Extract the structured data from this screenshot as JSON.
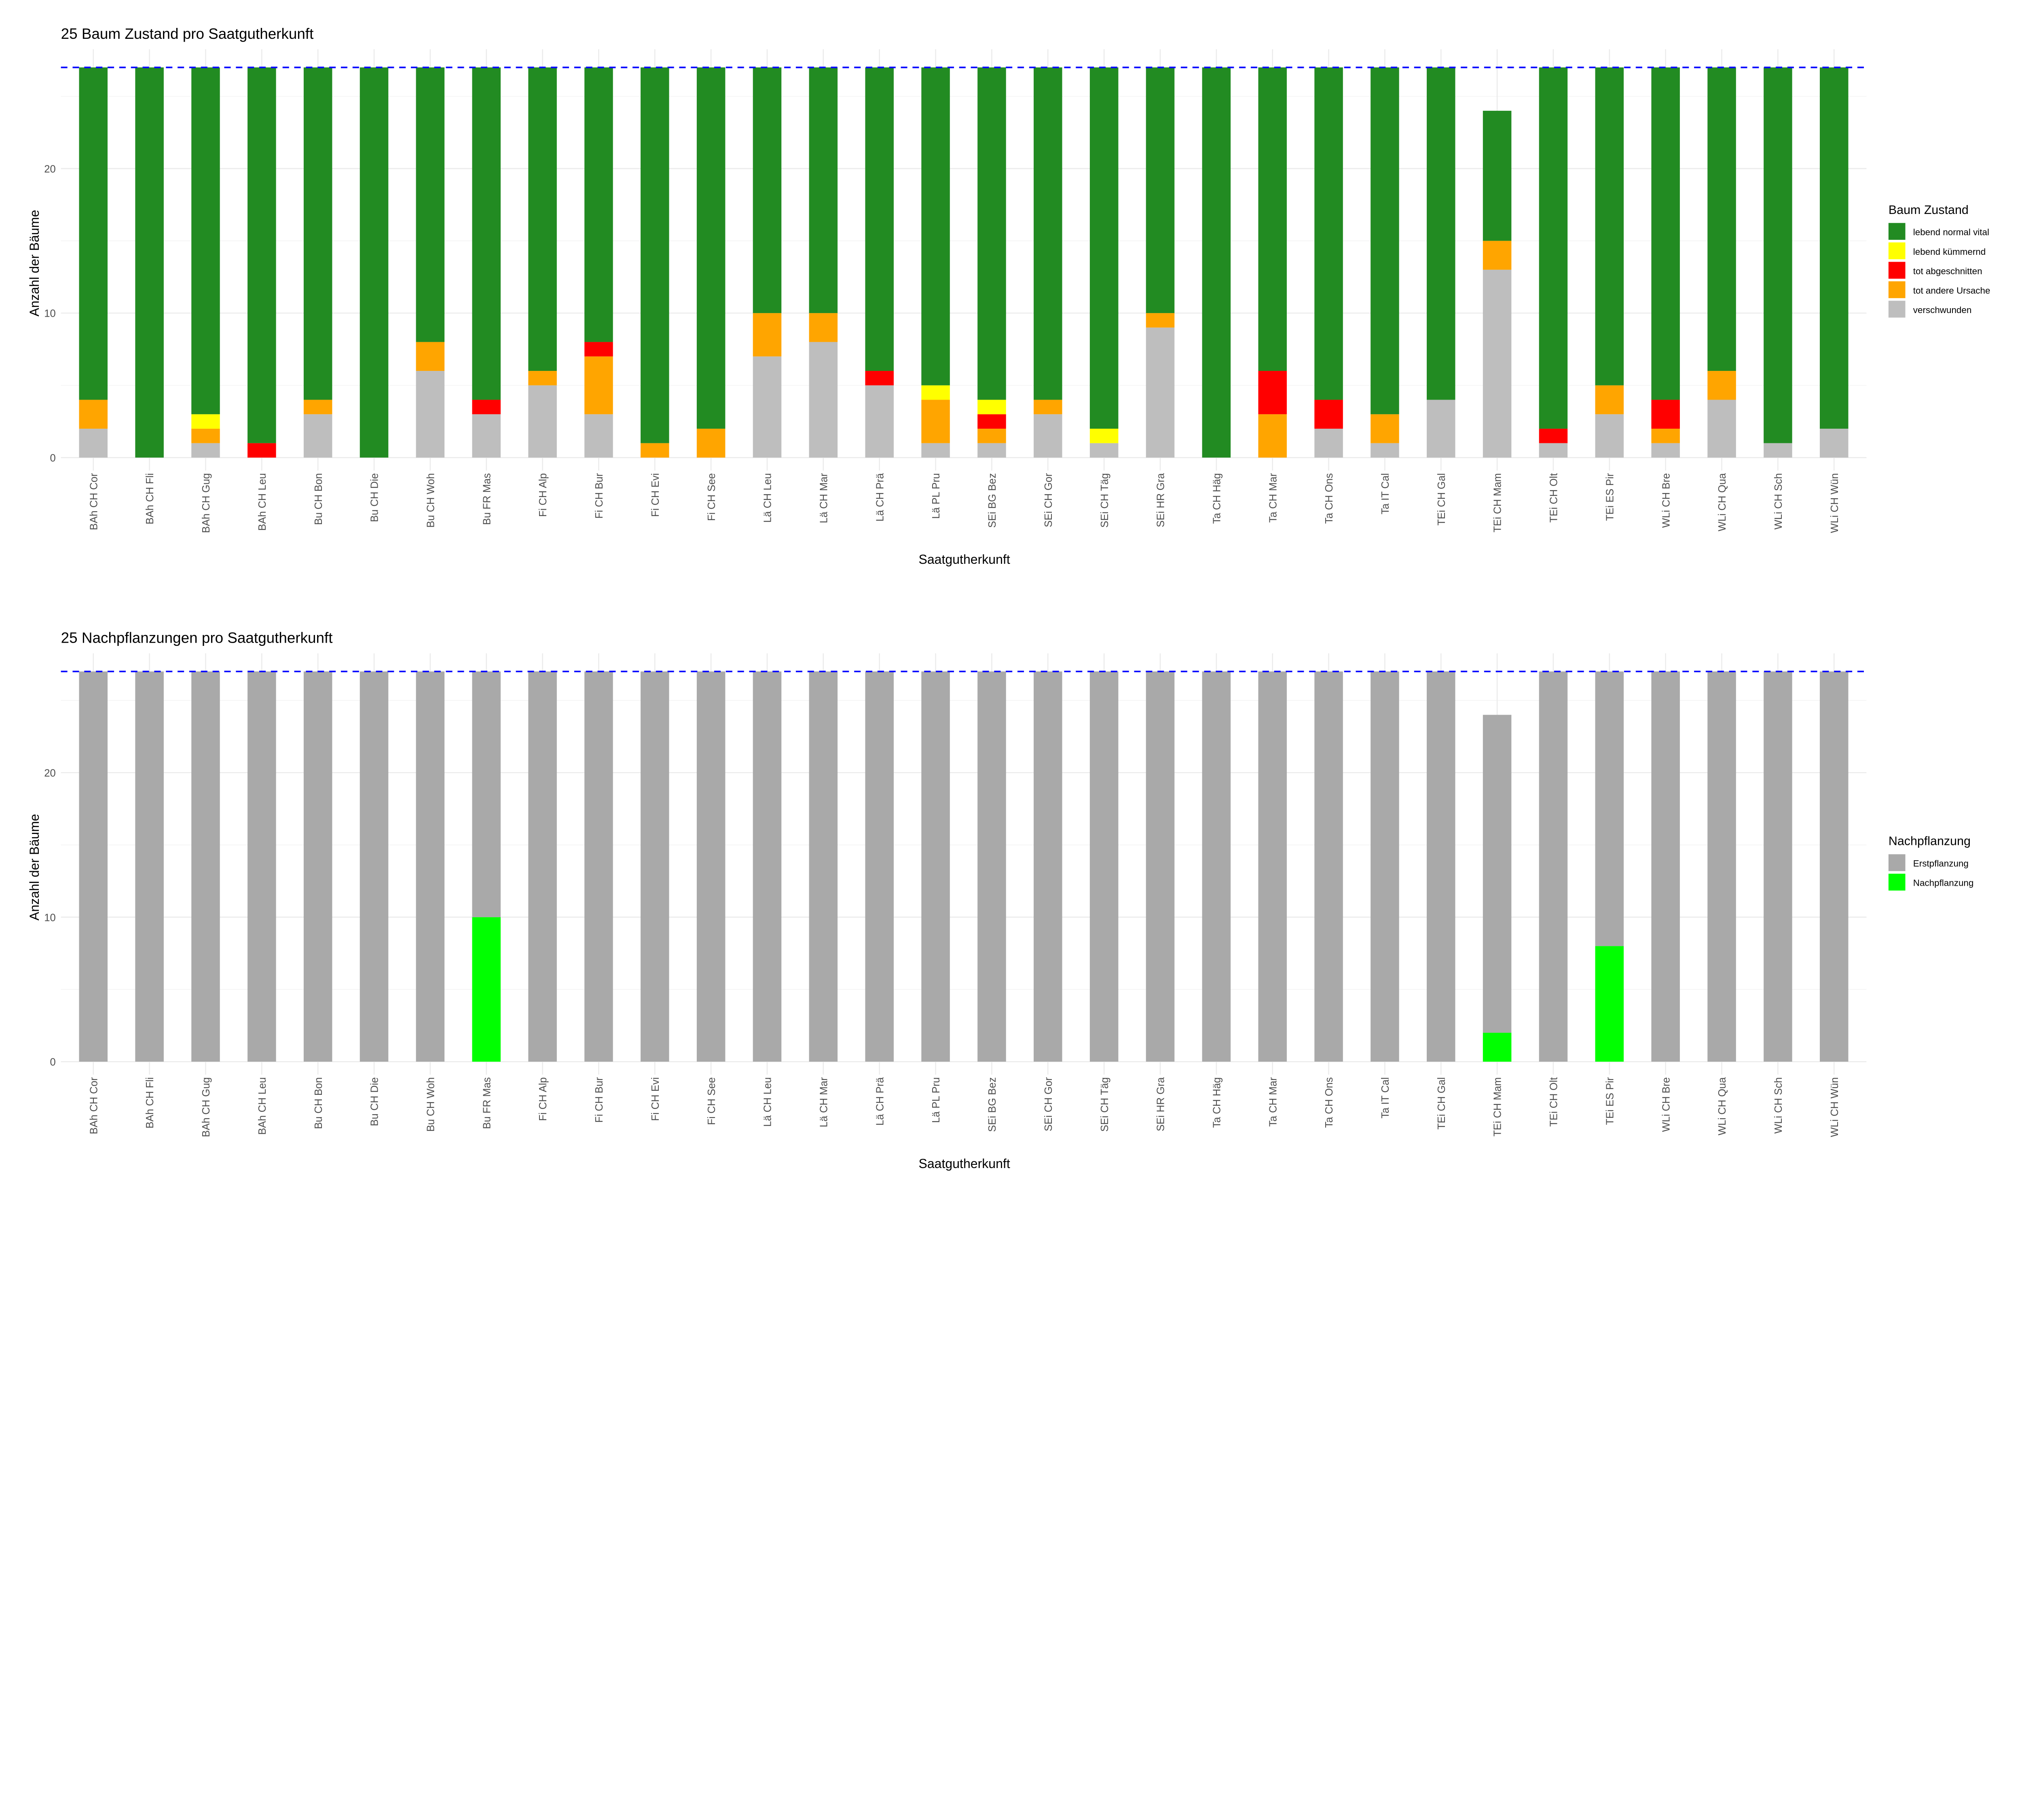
{
  "chart_data": [
    {
      "type": "bar",
      "stacked": true,
      "title": "25 Baum Zustand pro Saatgutherkunft",
      "xlabel": "Saatgutherkunft",
      "ylabel": "Anzahl der Bäume",
      "ylim": [
        0,
        28.3
      ],
      "yticks": [
        0,
        10,
        20
      ],
      "grid": true,
      "reference_line": {
        "y": 27,
        "color": "#0000ff",
        "style": "dashed"
      },
      "legend": {
        "title": "Baum Zustand",
        "position": "right"
      },
      "categories": [
        "BAh CH Cor",
        "BAh CH Fli",
        "BAh CH Gug",
        "BAh CH Leu",
        "Bu CH Bon",
        "Bu CH Die",
        "Bu CH Woh",
        "Bu FR Mas",
        "Fi CH Alp",
        "Fi CH Bur",
        "Fi CH Evi",
        "Fi CH See",
        "Lä CH Leu",
        "Lä CH Mar",
        "Lä CH Prä",
        "Lä PL Pru",
        "SEi BG Bez",
        "SEi CH Gor",
        "SEi CH Täg",
        "SEi HR Gra",
        "Ta CH Häg",
        "Ta CH Mar",
        "Ta CH Ons",
        "Ta IT Cal",
        "TEi CH Gal",
        "TEi CH Mam",
        "TEi CH Olt",
        "TEi ES Pir",
        "WLi CH Bre",
        "WLi CH Qua",
        "WLi CH Sch",
        "WLi CH Wün"
      ],
      "series": [
        {
          "name": "lebend normal vital",
          "color": "#228b22",
          "values": [
            23,
            27,
            24,
            26,
            23,
            27,
            19,
            23,
            21,
            19,
            26,
            25,
            17,
            17,
            21,
            22,
            23,
            23,
            25,
            17,
            27,
            21,
            23,
            24,
            23,
            9,
            25,
            22,
            23,
            21,
            26,
            25
          ]
        },
        {
          "name": "lebend kümmernd",
          "color": "#ffff00",
          "values": [
            0,
            0,
            1,
            0,
            0,
            0,
            0,
            0,
            0,
            0,
            0,
            0,
            0,
            0,
            0,
            1,
            1,
            0,
            1,
            0,
            0,
            0,
            0,
            0,
            0,
            0,
            0,
            0,
            0,
            0,
            0,
            0
          ]
        },
        {
          "name": "tot abgeschnitten",
          "color": "#ff0000",
          "values": [
            0,
            0,
            0,
            1,
            0,
            0,
            0,
            1,
            0,
            1,
            0,
            0,
            0,
            0,
            1,
            0,
            1,
            0,
            0,
            0,
            0,
            3,
            2,
            0,
            0,
            0,
            1,
            0,
            2,
            0,
            0,
            0
          ]
        },
        {
          "name": "tot andere Ursache",
          "color": "#ffa500",
          "values": [
            2,
            0,
            1,
            0,
            1,
            0,
            2,
            0,
            1,
            4,
            1,
            2,
            3,
            2,
            0,
            3,
            1,
            1,
            0,
            1,
            0,
            3,
            0,
            2,
            0,
            2,
            0,
            2,
            1,
            2,
            0,
            0
          ]
        },
        {
          "name": "verschwunden",
          "color": "#bebebe",
          "values": [
            2,
            0,
            1,
            0,
            3,
            0,
            6,
            3,
            5,
            3,
            0,
            0,
            7,
            8,
            5,
            1,
            1,
            3,
            1,
            9,
            0,
            0,
            2,
            1,
            4,
            13,
            1,
            3,
            1,
            4,
            1,
            2
          ]
        }
      ]
    },
    {
      "type": "bar",
      "stacked": true,
      "title": "25 Nachpflanzungen pro Saatgutherkunft",
      "xlabel": "Saatgutherkunft",
      "ylabel": "Anzahl der Bäume",
      "ylim": [
        0,
        28.3
      ],
      "yticks": [
        0,
        10,
        20
      ],
      "grid": true,
      "reference_line": {
        "y": 27,
        "color": "#0000ff",
        "style": "dashed"
      },
      "legend": {
        "title": "Nachpflanzung",
        "position": "right"
      },
      "categories": [
        "BAh CH Cor",
        "BAh CH Fli",
        "BAh CH Gug",
        "BAh CH Leu",
        "Bu CH Bon",
        "Bu CH Die",
        "Bu CH Woh",
        "Bu FR Mas",
        "Fi CH Alp",
        "Fi CH Bur",
        "Fi CH Evi",
        "Fi CH See",
        "Lä CH Leu",
        "Lä CH Mar",
        "Lä CH Prä",
        "Lä PL Pru",
        "SEi BG Bez",
        "SEi CH Gor",
        "SEi CH Täg",
        "SEi HR Gra",
        "Ta CH Häg",
        "Ta CH Mar",
        "Ta CH Ons",
        "Ta IT Cal",
        "TEi CH Gal",
        "TEi CH Mam",
        "TEi CH Olt",
        "TEi ES Pir",
        "WLi CH Bre",
        "WLi CH Qua",
        "WLi CH Sch",
        "WLi CH Wün"
      ],
      "series": [
        {
          "name": "Erstpflanzung",
          "color": "#a9a9a9",
          "values": [
            27,
            27,
            27,
            27,
            27,
            27,
            27,
            17,
            27,
            27,
            27,
            27,
            27,
            27,
            27,
            27,
            27,
            27,
            27,
            27,
            27,
            27,
            27,
            27,
            27,
            22,
            27,
            19,
            27,
            27,
            27,
            27
          ]
        },
        {
          "name": "Nachpflanzung",
          "color": "#00ff00",
          "values": [
            0,
            0,
            0,
            0,
            0,
            0,
            0,
            10,
            0,
            0,
            0,
            0,
            0,
            0,
            0,
            0,
            0,
            0,
            0,
            0,
            0,
            0,
            0,
            0,
            0,
            2,
            0,
            8,
            0,
            0,
            0,
            0
          ]
        }
      ]
    }
  ]
}
